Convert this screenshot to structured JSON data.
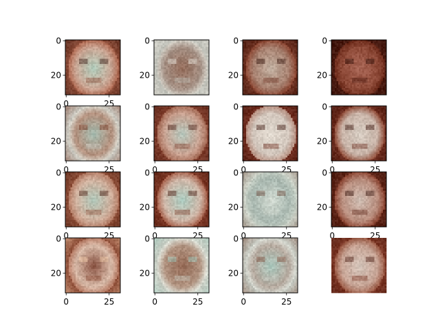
{
  "chart_data": {
    "type": "image_grid",
    "rows": 4,
    "columns": 4,
    "image_size": [
      32,
      32
    ],
    "panels": [
      {
        "palette": [
          "#8a4a36",
          "#b06a52",
          "#c9a593",
          "#a8d8c8",
          "#3c1f18"
        ],
        "xticks_visible": true,
        "yticks_visible": true
      },
      {
        "palette": [
          "#bfc0b8",
          "#d2cfc6",
          "#a48f83",
          "#8c5e4a",
          "#e3e0d8"
        ],
        "xticks_visible": false,
        "yticks_visible": true
      },
      {
        "palette": [
          "#6b2f1f",
          "#8a4531",
          "#a7806f",
          "#c9bfb0",
          "#3a1a12"
        ],
        "xticks_visible": false,
        "yticks_visible": true
      },
      {
        "palette": [
          "#4a1a10",
          "#6d2c1c",
          "#8e4a38",
          "#b06e5e",
          "#2c0e08"
        ],
        "xticks_visible": false,
        "yticks_visible": true
      },
      {
        "palette": [
          "#c9c8c0",
          "#d8d6cc",
          "#b28f7c",
          "#9fc9c0",
          "#7a3a26"
        ],
        "xticks_visible": true,
        "yticks_visible": true
      },
      {
        "palette": [
          "#7d3b2a",
          "#a56a55",
          "#c8a190",
          "#b0d4cc",
          "#4b1f15"
        ],
        "xticks_visible": true,
        "yticks_visible": true
      },
      {
        "palette": [
          "#6e2b1d",
          "#b78f80",
          "#d2c6bc",
          "#e6e0d6",
          "#3d170f"
        ],
        "xticks_visible": true,
        "yticks_visible": true
      },
      {
        "palette": [
          "#6a2a1c",
          "#8f4b37",
          "#c8b3a7",
          "#dcd6cc",
          "#3a140c"
        ],
        "xticks_visible": true,
        "yticks_visible": true
      },
      {
        "palette": [
          "#8a4b35",
          "#b37a63",
          "#d0b09d",
          "#a6cfc3",
          "#4a2014"
        ],
        "xticks_visible": true,
        "yticks_visible": true
      },
      {
        "palette": [
          "#7a3523",
          "#a6604a",
          "#cfb7a8",
          "#9fd2c8",
          "#4b1c12"
        ],
        "xticks_visible": true,
        "yticks_visible": true
      },
      {
        "palette": [
          "#cfd6cc",
          "#bfc9bf",
          "#a9b8b0",
          "#dfe5dc",
          "#6d4a3c"
        ],
        "xticks_visible": true,
        "yticks_visible": true
      },
      {
        "palette": [
          "#5e2416",
          "#8a4330",
          "#b98e7e",
          "#d8cfc6",
          "#35140c"
        ],
        "xticks_visible": true,
        "yticks_visible": true
      },
      {
        "palette": [
          "#8e4e38",
          "#b67a63",
          "#d7b9a7",
          "#6d2e1e",
          "#f0c9a6"
        ],
        "xticks_visible": true,
        "yticks_visible": true
      },
      {
        "palette": [
          "#c9cec4",
          "#dfe3da",
          "#b29582",
          "#8a5a45",
          "#9fd0c4"
        ],
        "xticks_visible": true,
        "yticks_visible": true
      },
      {
        "palette": [
          "#c4c8c0",
          "#d9dcd4",
          "#b5a99e",
          "#a8d3c9",
          "#7a4a38"
        ],
        "xticks_visible": true,
        "yticks_visible": true
      },
      {
        "palette": [
          "#7a3524",
          "#9b5a45",
          "#c6a394",
          "#d8cfc6",
          "#4a1c12"
        ],
        "xticks_visible": false,
        "yticks_visible": false
      }
    ],
    "x_tick_labels": [
      "0",
      "25"
    ],
    "y_tick_labels": [
      "0",
      "20"
    ],
    "title": "",
    "xlabel": "",
    "ylabel": ""
  }
}
